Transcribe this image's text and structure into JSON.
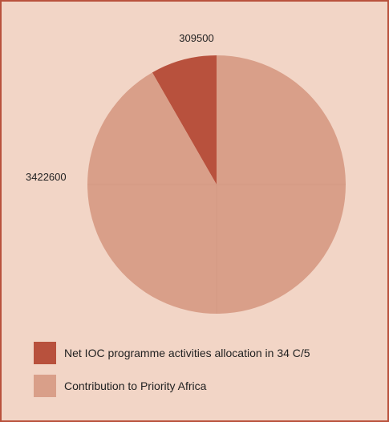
{
  "chart_data": {
    "type": "pie",
    "title": "",
    "slices": [
      {
        "label": "Net IOC programme activities allocation in 34 C/5",
        "value": 309500,
        "color": "#b8513d"
      },
      {
        "label": "Contribution to Priority Africa",
        "value": 3422600,
        "color": "#d99f89"
      }
    ],
    "data_labels": [
      "309500",
      "3422600"
    ],
    "legend_position": "bottom-left"
  },
  "legend": {
    "items": [
      {
        "label": "Net IOC programme activities allocation in 34 C/5",
        "color": "#b8513d"
      },
      {
        "label": "Contribution to Priority Africa",
        "color": "#d99f89"
      }
    ]
  },
  "colors": {
    "background": "#f2d5c6",
    "border": "#b9523d"
  }
}
